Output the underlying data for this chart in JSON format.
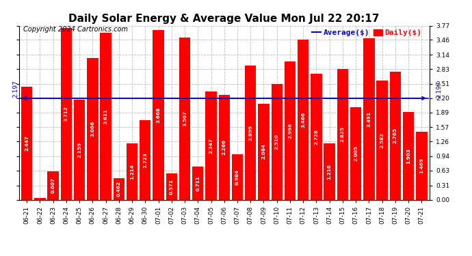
{
  "title": "Daily Solar Energy & Average Value Mon Jul 22 20:17",
  "copyright": "Copyright 2024 Cartronics.com",
  "legend_average": "Average($)",
  "legend_daily": "Daily($)",
  "average_value": 2.197,
  "categories": [
    "06-21",
    "06-22",
    "06-23",
    "06-24",
    "06-25",
    "06-26",
    "06-27",
    "06-28",
    "06-29",
    "06-30",
    "07-01",
    "07-02",
    "07-03",
    "07-04",
    "07-05",
    "07-06",
    "07-07",
    "07-08",
    "07-09",
    "07-10",
    "07-11",
    "07-12",
    "07-13",
    "07-14",
    "07-15",
    "07-16",
    "07-17",
    "07-18",
    "07-19",
    "07-20",
    "07-21"
  ],
  "values": [
    2.447,
    0.039,
    0.607,
    3.712,
    2.159,
    3.066,
    3.611,
    0.462,
    1.214,
    1.723,
    3.668,
    0.571,
    3.507,
    0.711,
    2.347,
    2.266,
    0.984,
    2.899,
    2.084,
    2.51,
    2.996,
    3.466,
    2.728,
    1.216,
    2.825,
    2.005,
    3.491,
    2.582,
    2.765,
    1.903,
    1.469
  ],
  "bar_color": "#ff0000",
  "average_line_color": "#0000cc",
  "background_color": "#ffffff",
  "grid_color": "#bbbbbb",
  "ylim": [
    0.0,
    3.77
  ],
  "yticks": [
    0.0,
    0.31,
    0.63,
    0.94,
    1.26,
    1.57,
    1.89,
    2.2,
    2.51,
    2.83,
    3.14,
    3.46,
    3.77
  ],
  "title_fontsize": 11,
  "tick_fontsize": 6.5,
  "value_fontsize": 5.2,
  "avg_label_fontsize": 6.5,
  "copyright_fontsize": 7,
  "legend_fontsize": 8
}
